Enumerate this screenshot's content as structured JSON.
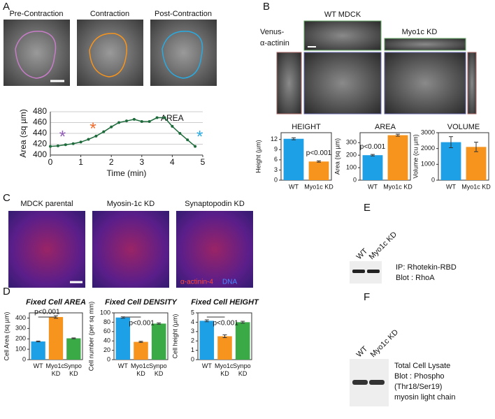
{
  "panels": {
    "A": {
      "letter": "A",
      "titles": [
        "Pre-Contraction",
        "Contraction",
        "Post-Contraction"
      ]
    },
    "B": {
      "letter": "B",
      "stain": [
        "Venus-",
        "α-actinin"
      ],
      "wt": "WT MDCK",
      "kd": "Myo1c KD"
    },
    "C": {
      "letter": "C",
      "titles": [
        "MDCK parental",
        "Myosin-1c KD",
        "Synaptopodin KD"
      ],
      "stain_red": "α-actinin-4",
      "stain_blue": "DNA"
    },
    "D": {
      "letter": "D"
    },
    "E": {
      "letter": "E",
      "lanes": [
        "WT",
        "Myo1c KD"
      ],
      "text": [
        "IP: Rhotekin-RBD",
        "Blot : RhoA"
      ]
    },
    "F": {
      "letter": "F",
      "lanes": [
        "WT",
        "Myo1c KD"
      ],
      "text": [
        "Total Cell Lysate",
        "Blot : Phospho",
        "(Thr18/Ser19)",
        "myosin light chain"
      ]
    }
  },
  "chart_data": [
    {
      "type": "line",
      "label": "AREA",
      "xlabel": "Time (min)",
      "ylabel": "Area (sq µm)",
      "color": "#1e6b3c",
      "x": [
        0,
        0.25,
        0.5,
        0.75,
        1,
        1.25,
        1.5,
        1.75,
        2,
        2.25,
        2.5,
        2.75,
        3,
        3.25,
        3.5,
        3.75,
        4,
        4.25,
        4.5,
        4.75
      ],
      "values": [
        416,
        417,
        419,
        421,
        424,
        429,
        435,
        443,
        452,
        460,
        463,
        466,
        462,
        462,
        469,
        469,
        453,
        440,
        428,
        416
      ],
      "xlim": [
        0,
        5
      ],
      "xticks": [
        0,
        1,
        2,
        3,
        4,
        5
      ],
      "ylim": [
        400,
        480
      ],
      "yticks": [
        400,
        420,
        440,
        460,
        480
      ],
      "grid": true,
      "annotations": [
        {
          "text": "*",
          "color": "#8e5bb5"
        },
        {
          "text": "*",
          "color": "#f26b2a"
        },
        {
          "text": "*",
          "color": "#29abe2"
        }
      ]
    },
    {
      "type": "bar",
      "title": "HEIGHT",
      "ylabel": "Height (µm)",
      "categories": [
        "WT",
        "Myo1c KD"
      ],
      "colors": [
        "#1ea0e6",
        "#f7941d"
      ],
      "values": [
        12.2,
        5.5
      ],
      "errors": [
        0.3,
        0.2
      ],
      "ylim": [
        0,
        14
      ],
      "yticks": [
        0,
        3,
        6,
        9,
        12
      ],
      "annotation": "p<0.001"
    },
    {
      "type": "bar",
      "title": "AREA",
      "ylabel": "Area (sq µm)",
      "categories": [
        "WT",
        "Myo1c KD"
      ],
      "colors": [
        "#1ea0e6",
        "#f7941d"
      ],
      "values": [
        200,
        360
      ],
      "errors": [
        6,
        8
      ],
      "ylim": [
        0,
        380
      ],
      "yticks": [
        0,
        100,
        200,
        300
      ],
      "annotation": "p<0.001"
    },
    {
      "type": "bar",
      "title": "VOLUME",
      "ylabel": "Volume (cu µm)",
      "categories": [
        "WT",
        "Myo1c KD"
      ],
      "colors": [
        "#1ea0e6",
        "#f7941d"
      ],
      "values": [
        2400,
        2100
      ],
      "errors": [
        350,
        300
      ],
      "ylim": [
        0,
        3000
      ],
      "yticks": [
        0,
        1000,
        2000,
        3000
      ]
    },
    {
      "type": "bar",
      "title": "Fixed Cell AREA",
      "ylabel": "Cell Area (sq µm)",
      "categories": [
        "WT",
        "Myo1c KD",
        "Synpo KD"
      ],
      "colors": [
        "#1ea0e6",
        "#f7941d",
        "#3aaa47"
      ],
      "values": [
        175,
        410,
        205
      ],
      "errors": [
        4,
        12,
        4
      ],
      "ylim": [
        0,
        450
      ],
      "yticks": [
        0,
        100,
        200,
        300,
        400
      ],
      "annotation": "p<0.001"
    },
    {
      "type": "bar",
      "title": "Fixed Cell DENSITY",
      "ylabel": "Cell number (per sq mm)",
      "categories": [
        "WT",
        "Myo1c KD",
        "Synpo KD"
      ],
      "colors": [
        "#1ea0e6",
        "#f7941d",
        "#3aaa47"
      ],
      "values": [
        90,
        38,
        77
      ],
      "errors": [
        1.5,
        1.2,
        1.5
      ],
      "ylim": [
        0,
        100
      ],
      "yticks": [
        0,
        20,
        40,
        60,
        80,
        100
      ],
      "annotation": "p<0.001"
    },
    {
      "type": "bar",
      "title": "Fixed Cell HEIGHT",
      "ylabel": "Cell height (µm)",
      "categories": [
        "WT",
        "Myo1c KD",
        "Synpo KD"
      ],
      "colors": [
        "#1ea0e6",
        "#f7941d",
        "#3aaa47"
      ],
      "values": [
        4.15,
        2.5,
        4.0
      ],
      "errors": [
        0.1,
        0.15,
        0.1
      ],
      "ylim": [
        0,
        5
      ],
      "yticks": [
        0,
        1,
        2,
        3,
        4,
        5
      ],
      "annotation": "p<0.001"
    }
  ]
}
